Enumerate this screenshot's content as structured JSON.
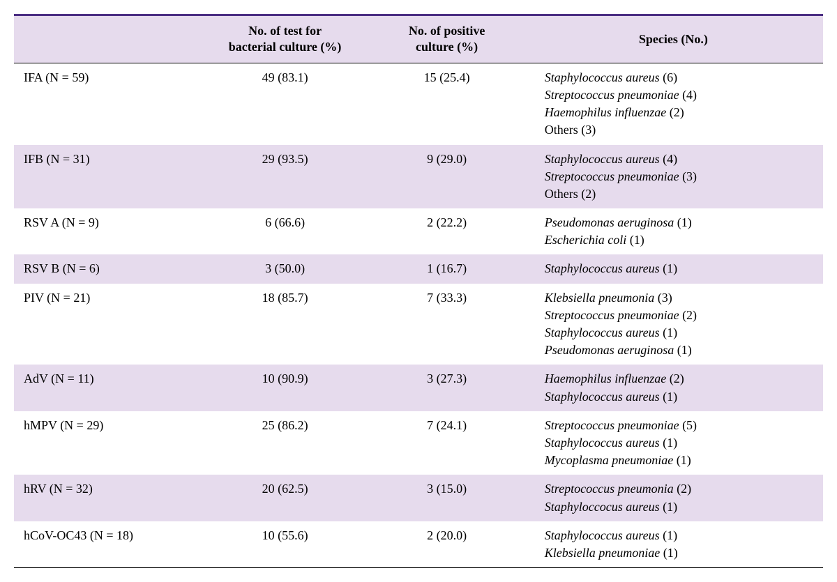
{
  "table": {
    "columns": [
      {
        "key": "label",
        "header": ""
      },
      {
        "key": "tests",
        "header": "No. of test for\nbacterial culture (%)"
      },
      {
        "key": "positive",
        "header": "No. of positive\nculture (%)"
      },
      {
        "key": "species",
        "header": "Species (No.)"
      }
    ],
    "rows": [
      {
        "label": "IFA (N = 59)",
        "tests": "49 (83.1)",
        "positive": "15 (25.4)",
        "species": [
          {
            "name": "Staphylococcus aureus",
            "count": "(6)",
            "italic": true
          },
          {
            "name": "Streptococcus pneumoniae",
            "count": "(4)",
            "italic": true
          },
          {
            "name": "Haemophilus influenzae",
            "count": "(2)",
            "italic": true
          },
          {
            "name": "Others",
            "count": "(3)",
            "italic": false
          }
        ],
        "alt": false
      },
      {
        "label": "IFB (N = 31)",
        "tests": "29 (93.5)",
        "positive": "9 (29.0)",
        "species": [
          {
            "name": "Staphylococcus aureus",
            "count": "(4)",
            "italic": true
          },
          {
            "name": "Streptococcus pneumoniae",
            "count": "(3)",
            "italic": true
          },
          {
            "name": "Others",
            "count": "(2)",
            "italic": false
          }
        ],
        "alt": true
      },
      {
        "label": "RSV A (N = 9)",
        "tests": "6 (66.6)",
        "positive": "2 (22.2)",
        "species": [
          {
            "name": "Pseudomonas aeruginosa",
            "count": "(1)",
            "italic": true
          },
          {
            "name": "Escherichia coli",
            "count": "(1)",
            "italic": true
          }
        ],
        "alt": false
      },
      {
        "label": "RSV B (N = 6)",
        "tests": "3 (50.0)",
        "positive": "1 (16.7)",
        "species": [
          {
            "name": "Staphylococcus aureus",
            "count": "(1)",
            "italic": true
          }
        ],
        "alt": true
      },
      {
        "label": "PIV (N = 21)",
        "tests": "18 (85.7)",
        "positive": "7 (33.3)",
        "species": [
          {
            "name": "Klebsiella pneumonia",
            "count": "(3)",
            "italic": true
          },
          {
            "name": "Streptococcus pneumoniae",
            "count": "(2)",
            "italic": true
          },
          {
            "name": "Staphylococcus aureus",
            "count": "(1)",
            "italic": true
          },
          {
            "name": "Pseudomonas aeruginosa",
            "count": "(1)",
            "italic": true
          }
        ],
        "alt": false
      },
      {
        "label": "AdV (N = 11)",
        "tests": "10 (90.9)",
        "positive": "3 (27.3)",
        "species": [
          {
            "name": "Haemophilus influenzae",
            "count": "(2)",
            "italic": true
          },
          {
            "name": "Staphylococcus aureus",
            "count": "(1)",
            "italic": true
          }
        ],
        "alt": true
      },
      {
        "label": "hMPV (N = 29)",
        "tests": "25 (86.2)",
        "positive": "7 (24.1)",
        "species": [
          {
            "name": "Streptococcus pneumoniae",
            "count": "(5)",
            "italic": true
          },
          {
            "name": "Staphylococcus aureus",
            "count": "(1)",
            "italic": true
          },
          {
            "name": "Mycoplasma pneumoniae",
            "count": "(1)",
            "italic": true
          }
        ],
        "alt": false
      },
      {
        "label": "hRV (N = 32)",
        "tests": "20 (62.5)",
        "positive": "3 (15.0)",
        "species": [
          {
            "name": "Streptococcus pneumonia",
            "count": "(2)",
            "italic": true
          },
          {
            "name": "Staphyloccocus aureus",
            "count": "(1)",
            "italic": true
          }
        ],
        "alt": true
      },
      {
        "label": "hCoV-OC43 (N = 18)",
        "tests": "10 (55.6)",
        "positive": "2 (20.0)",
        "species": [
          {
            "name": "Staphylococcus aureus",
            "count": "(1)",
            "italic": true
          },
          {
            "name": "Klebsiella pneumoniae",
            "count": "(1)",
            "italic": true
          }
        ],
        "alt": false
      }
    ],
    "style": {
      "header_bg": "#e6dbed",
      "row_alt_bg": "#e6dbed",
      "top_border_color": "#4b2e83",
      "border_color": "#000000",
      "font_size_pt": 14,
      "font_family": "Georgia, serif",
      "italic_species": true
    }
  }
}
